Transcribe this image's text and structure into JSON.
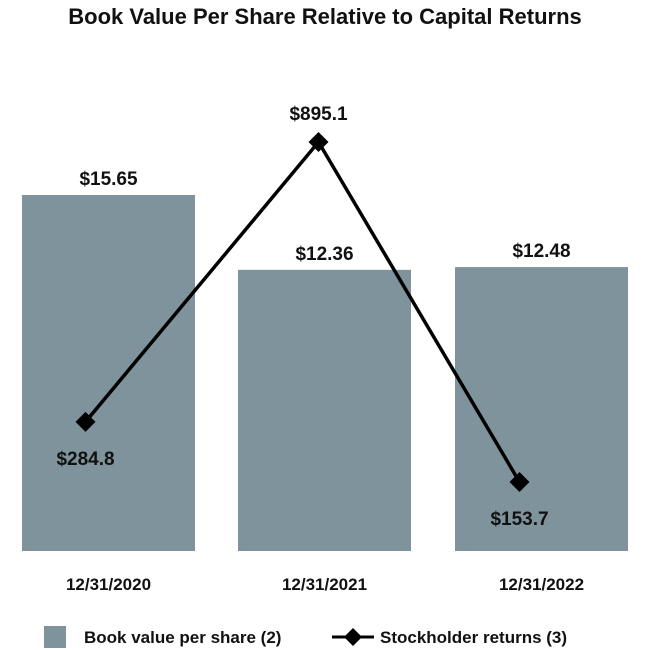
{
  "chart_data": {
    "type": "bar",
    "title": "Book Value Per Share Relative to Capital Returns",
    "categories": [
      "12/31/2020",
      "12/31/2021",
      "12/31/2022"
    ],
    "series": [
      {
        "name": "Book value per share (2)",
        "type": "bar",
        "axis": "left",
        "values": [
          15.65,
          12.36,
          12.48
        ],
        "data_labels": [
          "$15.65",
          "$12.36",
          "$12.48"
        ],
        "color": "#7e939b"
      },
      {
        "name": "Stockholder returns (3)",
        "type": "line",
        "marker": "diamond",
        "axis": "right",
        "values": [
          284.8,
          895.1,
          153.7
        ],
        "data_labels": [
          "$284.8",
          "$895.1",
          "$153.7"
        ],
        "color": "#000000"
      }
    ],
    "grid": false,
    "legend_position": "bottom"
  }
}
